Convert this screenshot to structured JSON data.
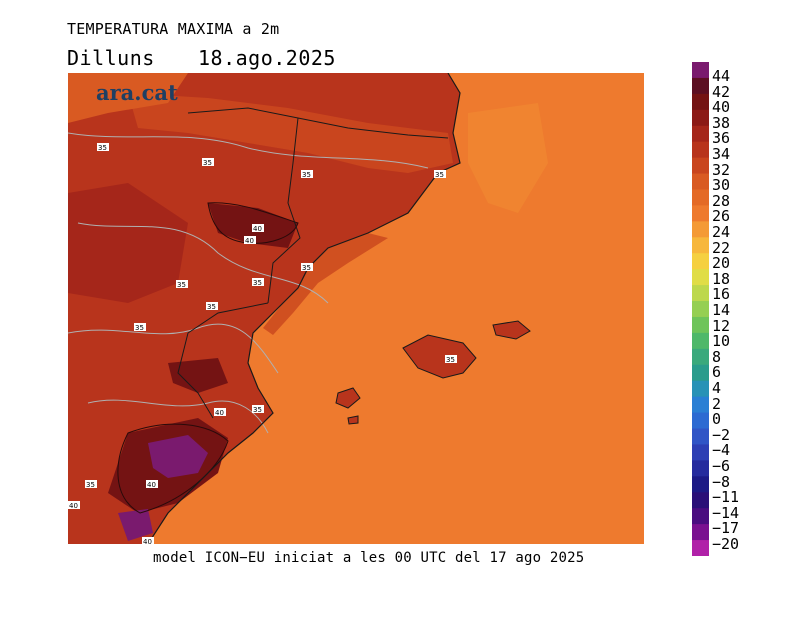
{
  "header": {
    "title": "TEMPERATURA MAXIMA a 2m",
    "day": "Dilluns",
    "date": "18.ago.2025"
  },
  "map": {
    "logo": "ara.cat",
    "contour_labels": [
      "35",
      "35",
      "35",
      "35",
      "40",
      "40",
      "35",
      "35",
      "35",
      "35",
      "35",
      "35",
      "35",
      "40",
      "35",
      "35",
      "40",
      "40",
      "40"
    ]
  },
  "legend": {
    "labels": [
      "44",
      "42",
      "40",
      "38",
      "36",
      "34",
      "32",
      "30",
      "28",
      "26",
      "24",
      "22",
      "20",
      "18",
      "16",
      "14",
      "12",
      "10",
      "8",
      "6",
      "4",
      "2",
      "0",
      "−2",
      "−4",
      "−6",
      "−8",
      "−11",
      "−14",
      "−17",
      "−20"
    ],
    "colors": [
      "#7a1a6e",
      "#5c0f22",
      "#741313",
      "#8c1a16",
      "#a5261a",
      "#b8341c",
      "#c9451e",
      "#d95a22",
      "#e46a26",
      "#ee7a2e",
      "#f49a36",
      "#f7b73c",
      "#f5d040",
      "#e0dd46",
      "#bdd84c",
      "#95cf52",
      "#6ec45a",
      "#4eb86a",
      "#3aa97c",
      "#2a9c8c",
      "#2892b6",
      "#2a7fd4",
      "#2c6ad2",
      "#3055c6",
      "#2d3fb4",
      "#252b9e",
      "#1c1a86",
      "#2a0f78",
      "#4a0c80",
      "#7a1090",
      "#b021a8"
    ]
  },
  "footer": {
    "text": "model ICON−EU iniciat a les 00 UTC del 17 ago 2025"
  }
}
